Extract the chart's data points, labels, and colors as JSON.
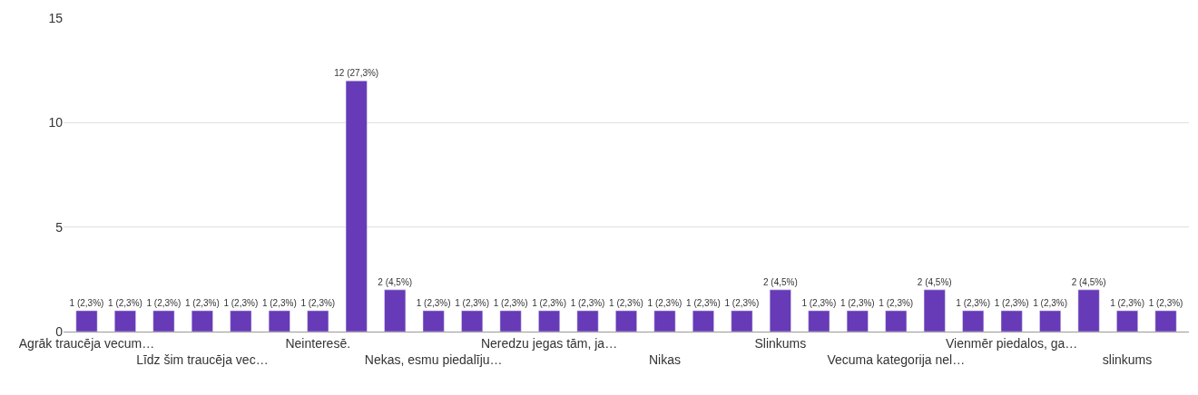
{
  "chart_data": {
    "type": "bar",
    "categories": [
      "Agrāk traucēja vecum…",
      null,
      null,
      "Līdz šim traucēja vec…",
      null,
      null,
      "Neinteresē.",
      null,
      null,
      "Nekas, esmu piedalīju…",
      null,
      null,
      "Neredzu jegas tām, ja…",
      null,
      null,
      "Nikas",
      null,
      null,
      "Slinkums",
      null,
      null,
      "Vecuma kategorija nel…",
      null,
      null,
      "Vienmēr piedalos, ga…",
      null,
      null,
      "slinkums",
      null
    ],
    "values": [
      1,
      1,
      1,
      1,
      1,
      1,
      1,
      12,
      2,
      1,
      1,
      1,
      1,
      1,
      1,
      1,
      1,
      1,
      2,
      1,
      1,
      1,
      2,
      1,
      1,
      1,
      2,
      1,
      1
    ],
    "value_labels": [
      "1 (2,3%)",
      "1 (2,3%)",
      "1 (2,3%)",
      "1 (2,3%)",
      "1 (2,3%)",
      "1 (2,3%)",
      "1 (2,3%)",
      "12 (27,3%)",
      "2 (4,5%)",
      "1 (2,3%)",
      "1 (2,3%)",
      "1 (2,3%)",
      "1 (2,3%)",
      "1 (2,3%)",
      "1 (2,3%)",
      "1 (2,3%)",
      "1 (2,3%)",
      "1 (2,3%)",
      "2 (4,5%)",
      "1 (2,3%)",
      "1 (2,3%)",
      "1 (2,3%)",
      "2 (4,5%)",
      "1 (2,3%)",
      "1 (2,3%)",
      "1 (2,3%)",
      "2 (4,5%)",
      "1 (2,3%)",
      "1 (2,3%)"
    ],
    "color": "#673ab7",
    "ylim": [
      0,
      15
    ],
    "yticks": [
      0,
      5,
      10,
      15
    ],
    "grid": "y",
    "legend": false
  }
}
